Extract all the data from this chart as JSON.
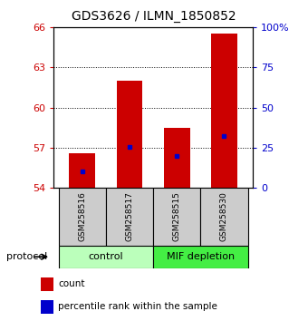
{
  "title": "GDS3626 / ILMN_1850852",
  "samples": [
    "GSM258516",
    "GSM258517",
    "GSM258515",
    "GSM258530"
  ],
  "bar_values": [
    56.6,
    62.0,
    58.5,
    65.5
  ],
  "percentile_values": [
    10.0,
    25.5,
    20.0,
    32.0
  ],
  "bar_bottom": 54,
  "ylim": [
    54,
    66
  ],
  "yticks_left": [
    54,
    57,
    60,
    63,
    66
  ],
  "yticks_right": [
    0,
    25,
    50,
    75,
    100
  ],
  "bar_color": "#cc0000",
  "percentile_color": "#0000cc",
  "bar_width": 0.55,
  "control_label": "control",
  "depletion_label": "MIF depletion",
  "control_color": "#bbffbb",
  "depletion_color": "#44ee44",
  "sample_bg_color": "#cccccc",
  "legend_count_label": "count",
  "legend_percentile_label": "percentile rank within the sample",
  "protocol_label": "protocol",
  "title_fontsize": 10,
  "tick_fontsize": 8,
  "sample_fontsize": 6.5,
  "protocol_fontsize": 8,
  "legend_fontsize": 7.5
}
